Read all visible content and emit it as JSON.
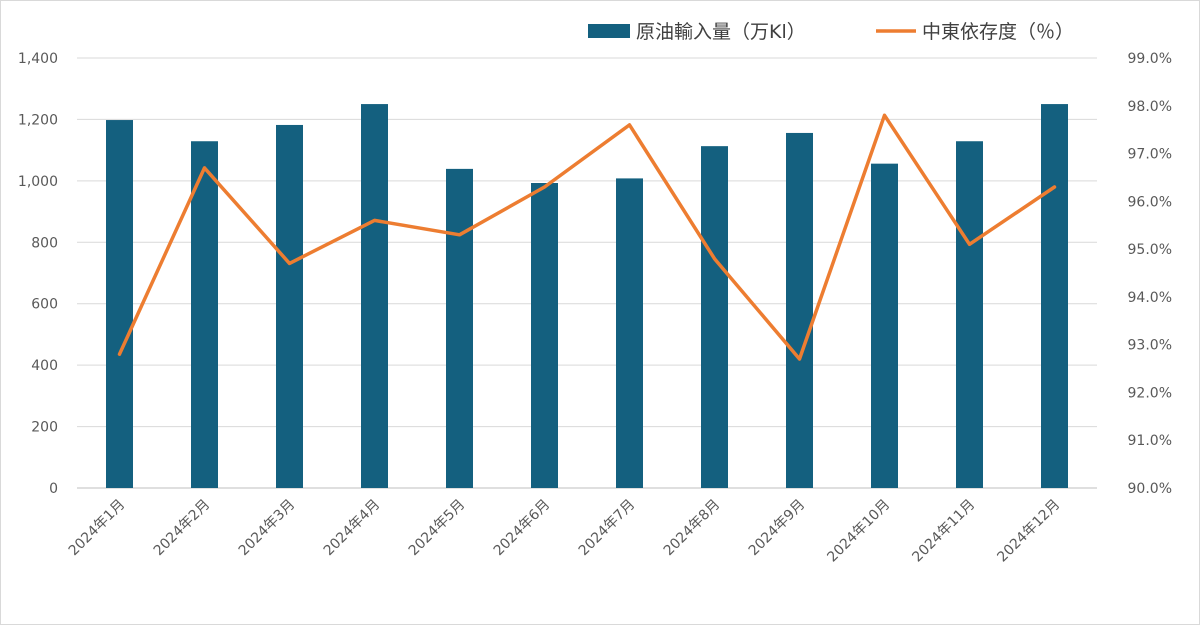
{
  "colors": {
    "bar": "#14607f",
    "line": "#ed7d31",
    "grid": "#d9d9d9",
    "axis_text": "#595959",
    "border": "#d9d9d9"
  },
  "chart_data": {
    "type": "bar",
    "categories": [
      "2024年1月",
      "2024年2月",
      "2024年3月",
      "2024年4月",
      "2024年5月",
      "2024年6月",
      "2024年7月",
      "2024年8月",
      "2024年9月",
      "2024年10月",
      "2024年11月",
      "2024年12月"
    ],
    "series": [
      {
        "name": "原油輸入量（万Kl）",
        "type": "bar",
        "axis": "left",
        "values": [
          1198,
          1129,
          1182,
          1250,
          1039,
          993,
          1008,
          1113,
          1156,
          1056,
          1129,
          1250
        ]
      },
      {
        "name": "中東依存度（％）",
        "type": "line",
        "axis": "right",
        "values": [
          92.8,
          96.7,
          94.7,
          95.6,
          95.3,
          96.3,
          97.6,
          94.8,
          92.7,
          97.8,
          95.1,
          96.3
        ]
      }
    ],
    "y_left": {
      "ylim": [
        0,
        1400
      ],
      "ticks": [
        "0",
        "200",
        "400",
        "600",
        "800",
        "1,000",
        "1,200",
        "1,400"
      ]
    },
    "y_right": {
      "ylim": [
        90,
        99
      ],
      "ticks": [
        "90.0%",
        "91.0%",
        "92.0%",
        "93.0%",
        "94.0%",
        "95.0%",
        "96.0%",
        "97.0%",
        "98.0%",
        "99.0%"
      ]
    },
    "grid": true,
    "legend_position": "top-right"
  }
}
